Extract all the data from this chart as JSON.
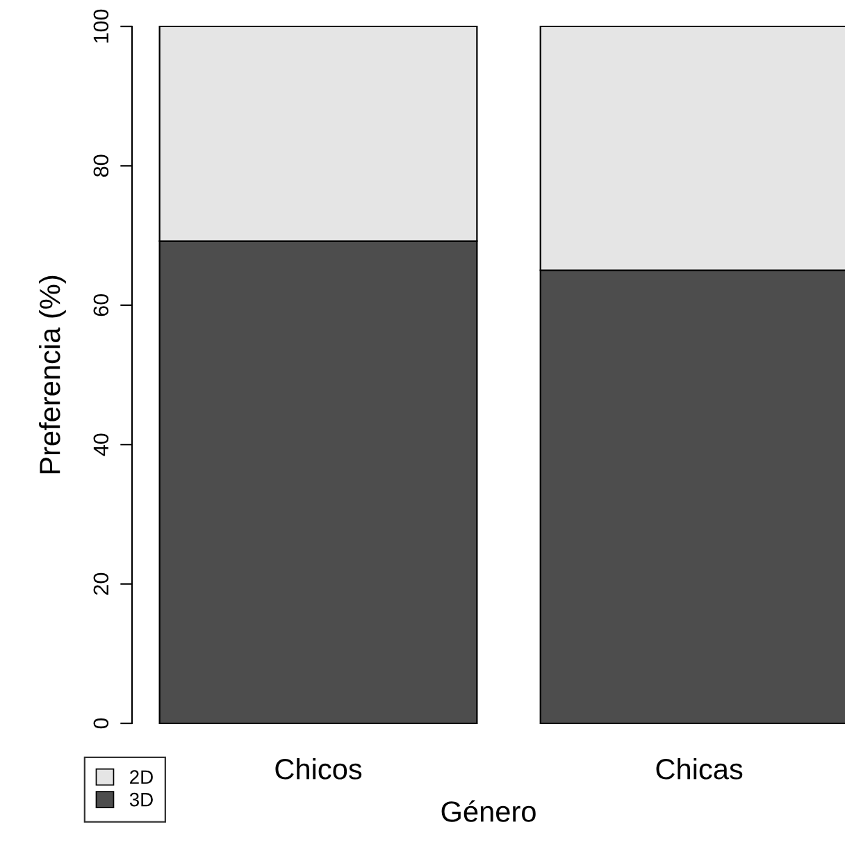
{
  "chart_data": {
    "type": "bar",
    "stacked": true,
    "xlabel": "Género",
    "ylabel": "Preferencia (%)",
    "categories": [
      "Chicos",
      "Chicas"
    ],
    "series": [
      {
        "name": "3D",
        "color": "#4d4d4d",
        "values": [
          69.2,
          65.0
        ]
      },
      {
        "name": "2D",
        "color": "#e5e5e5",
        "values": [
          30.8,
          35.0
        ]
      }
    ],
    "ylim": [
      0,
      100
    ],
    "yticks": [
      0,
      20,
      40,
      60,
      80,
      100
    ],
    "grid": false,
    "legend": "bottom left"
  }
}
